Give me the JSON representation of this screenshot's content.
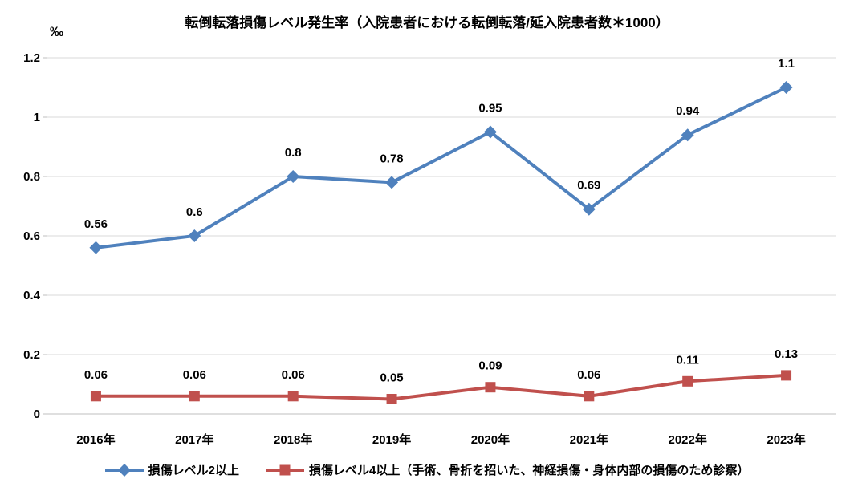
{
  "chart_data": {
    "type": "line",
    "title": "転倒転落損傷レベル発生率（入院患者における転倒転落/延入院患者数＊1000）",
    "ylabel": "‰",
    "xlabel": "",
    "ylim": [
      0,
      1.2
    ],
    "yticks": [
      0,
      0.2,
      0.4,
      0.6,
      0.8,
      1,
      1.2
    ],
    "grid": true,
    "legend_position": "bottom",
    "categories": [
      "2016年",
      "2017年",
      "2018年",
      "2019年",
      "2020年",
      "2021年",
      "2022年",
      "2023年"
    ],
    "series": [
      {
        "name": "損傷レベル2以上",
        "values": [
          0.56,
          0.6,
          0.8,
          0.78,
          0.95,
          0.69,
          0.94,
          1.1
        ],
        "labels": [
          "0.56",
          "0.6",
          "0.8",
          "0.78",
          "0.95",
          "0.69",
          "0.94",
          "1.1"
        ],
        "color": "#4F81BD",
        "marker": "diamond"
      },
      {
        "name": "損傷レベル4以上（手術、骨折を招いた、神経損傷・身体内部の損傷のため診察）",
        "values": [
          0.06,
          0.06,
          0.06,
          0.05,
          0.09,
          0.06,
          0.11,
          0.13
        ],
        "labels": [
          "0.06",
          "0.06",
          "0.06",
          "0.05",
          "0.09",
          "0.06",
          "0.11",
          "0.13"
        ],
        "color": "#C0504D",
        "marker": "square"
      }
    ],
    "colors": {
      "grid": "#D9D9D9",
      "axis": "#BFBFBF",
      "text": "#000000",
      "background": "#FFFFFF"
    }
  }
}
